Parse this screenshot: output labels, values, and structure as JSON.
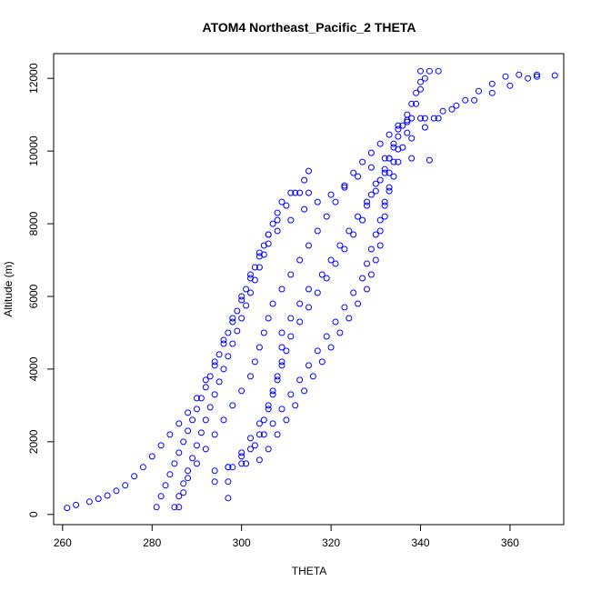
{
  "chart_data": {
    "type": "scatter",
    "title": "ATOM4 Northeast_Pacific_2 THETA",
    "xlabel": "THETA",
    "ylabel": "Altitude (m)",
    "xlim": [
      258,
      372
    ],
    "ylim": [
      -280,
      12680
    ],
    "xticks": [
      260,
      280,
      300,
      320,
      340,
      360
    ],
    "yticks": [
      0,
      2000,
      4000,
      6000,
      8000,
      10000,
      12000
    ],
    "grid": false,
    "marker": "open-circle",
    "point_color": "#0000ff",
    "series": [
      {
        "values": [
          [
            261,
            180
          ],
          [
            263,
            260
          ],
          [
            266,
            350
          ],
          [
            268,
            430
          ],
          [
            270,
            520
          ],
          [
            272,
            650
          ],
          [
            274,
            800
          ],
          [
            276,
            1050
          ],
          [
            278,
            1300
          ],
          [
            280,
            1600
          ],
          [
            282,
            1900
          ],
          [
            284,
            2200
          ],
          [
            286,
            2500
          ],
          [
            288,
            2800
          ],
          [
            290,
            3200
          ],
          [
            292,
            3700
          ],
          [
            294,
            4200
          ],
          [
            296,
            4800
          ],
          [
            298,
            5400
          ],
          [
            300,
            6000
          ],
          [
            302,
            6600
          ],
          [
            304,
            7200
          ],
          [
            306,
            7700
          ],
          [
            308,
            8100
          ],
          [
            310,
            8500
          ],
          [
            312,
            8850
          ],
          [
            314,
            9200
          ],
          [
            315,
            9450
          ]
        ]
      },
      {
        "values": [
          [
            281,
            200
          ],
          [
            282,
            500
          ],
          [
            283,
            800
          ],
          [
            284,
            1100
          ],
          [
            285,
            1400
          ],
          [
            286,
            1700
          ],
          [
            287,
            2000
          ],
          [
            288,
            2300
          ],
          [
            289,
            2600
          ],
          [
            290,
            2900
          ],
          [
            291,
            3200
          ],
          [
            292,
            3500
          ],
          [
            293,
            3800
          ],
          [
            294,
            4100
          ],
          [
            295,
            4400
          ],
          [
            296,
            4700
          ],
          [
            297,
            5000
          ],
          [
            298,
            5300
          ],
          [
            299,
            5600
          ],
          [
            300,
            5900
          ],
          [
            301,
            6200
          ],
          [
            302,
            6500
          ],
          [
            303,
            6800
          ],
          [
            304,
            7100
          ],
          [
            305,
            7400
          ],
          [
            306,
            7700
          ],
          [
            307,
            8000
          ],
          [
            308,
            8300
          ],
          [
            309,
            8600
          ],
          [
            311,
            8850
          ],
          [
            313,
            8850
          ],
          [
            315,
            8850
          ]
        ]
      },
      {
        "values": [
          [
            285,
            200
          ],
          [
            286,
            500
          ],
          [
            287,
            850
          ],
          [
            288,
            1200
          ],
          [
            289,
            1550
          ],
          [
            290,
            1900
          ],
          [
            291,
            2250
          ],
          [
            292,
            2600
          ],
          [
            293,
            2950
          ],
          [
            294,
            3300
          ],
          [
            295,
            3650
          ],
          [
            296,
            4000
          ],
          [
            297,
            4350
          ],
          [
            298,
            4700
          ],
          [
            299,
            5050
          ],
          [
            300,
            5400
          ],
          [
            301,
            5750
          ],
          [
            302,
            6100
          ],
          [
            303,
            6450
          ],
          [
            304,
            6800
          ],
          [
            305,
            7150
          ],
          [
            306,
            7450
          ],
          [
            308,
            7800
          ],
          [
            311,
            8100
          ],
          [
            314,
            8400
          ],
          [
            317,
            8600
          ],
          [
            320,
            8800
          ],
          [
            323,
            9050
          ],
          [
            326,
            9300
          ],
          [
            329,
            9550
          ],
          [
            332,
            9800
          ],
          [
            335,
            10050
          ],
          [
            338,
            10350
          ],
          [
            341,
            10650
          ],
          [
            344,
            10900
          ],
          [
            347,
            11150
          ],
          [
            350,
            11400
          ],
          [
            353,
            11650
          ],
          [
            356,
            11850
          ],
          [
            359,
            12050
          ],
          [
            362,
            12100
          ],
          [
            366,
            12100
          ],
          [
            370,
            12080
          ]
        ]
      },
      {
        "values": [
          [
            286,
            200
          ],
          [
            287,
            600
          ],
          [
            288,
            1000
          ],
          [
            290,
            1400
          ],
          [
            292,
            1800
          ],
          [
            294,
            2200
          ],
          [
            296,
            2600
          ],
          [
            298,
            3000
          ],
          [
            300,
            3400
          ],
          [
            302,
            3800
          ],
          [
            303,
            4200
          ],
          [
            304,
            4600
          ],
          [
            305,
            5000
          ],
          [
            306,
            5400
          ],
          [
            307,
            5800
          ],
          [
            309,
            6200
          ],
          [
            311,
            6600
          ],
          [
            313,
            7000
          ],
          [
            315,
            7400
          ],
          [
            317,
            7800
          ],
          [
            319,
            8200
          ],
          [
            321,
            8600
          ],
          [
            323,
            9000
          ],
          [
            325,
            9400
          ],
          [
            327,
            9700
          ],
          [
            329,
            9950
          ],
          [
            331,
            10200
          ],
          [
            333,
            10450
          ],
          [
            335,
            10700
          ],
          [
            337,
            10850
          ],
          [
            340,
            10900
          ],
          [
            343,
            10900
          ]
        ]
      },
      {
        "values": [
          [
            297,
            450
          ],
          [
            297,
            900
          ],
          [
            297,
            1300
          ],
          [
            300,
            1600
          ],
          [
            303,
            1900
          ],
          [
            305,
            2200
          ],
          [
            307,
            2500
          ],
          [
            309,
            2900
          ],
          [
            311,
            3300
          ],
          [
            313,
            3700
          ],
          [
            315,
            4100
          ],
          [
            317,
            4500
          ],
          [
            319,
            4900
          ],
          [
            321,
            5300
          ],
          [
            323,
            5700
          ],
          [
            325,
            6100
          ],
          [
            327,
            6500
          ],
          [
            328,
            6900
          ],
          [
            329,
            7300
          ],
          [
            330,
            7700
          ],
          [
            331,
            8100
          ],
          [
            332,
            8500
          ],
          [
            333,
            8900
          ],
          [
            334,
            9300
          ],
          [
            335,
            9700
          ],
          [
            336,
            10100
          ],
          [
            337,
            10500
          ],
          [
            338,
            10900
          ],
          [
            339,
            11300
          ],
          [
            340,
            11700
          ],
          [
            341,
            12000
          ],
          [
            342,
            12200
          ],
          [
            344,
            12200
          ]
        ]
      },
      {
        "values": [
          [
            294,
            900
          ],
          [
            297,
            1300
          ],
          [
            300,
            1700
          ],
          [
            302,
            2100
          ],
          [
            304,
            2500
          ],
          [
            306,
            2900
          ],
          [
            307,
            3300
          ],
          [
            308,
            3700
          ],
          [
            309,
            4100
          ],
          [
            310,
            4500
          ],
          [
            311,
            4900
          ],
          [
            313,
            5300
          ],
          [
            315,
            5700
          ],
          [
            317,
            6100
          ],
          [
            319,
            6500
          ],
          [
            321,
            6900
          ],
          [
            323,
            7300
          ],
          [
            325,
            7700
          ],
          [
            327,
            8100
          ],
          [
            328,
            8500
          ],
          [
            329,
            8800
          ],
          [
            330,
            9100
          ],
          [
            332,
            9400
          ],
          [
            334,
            9700
          ],
          [
            338,
            9800
          ],
          [
            342,
            9750
          ]
        ]
      },
      {
        "values": [
          [
            300,
            1400
          ],
          [
            302,
            1800
          ],
          [
            304,
            2200
          ],
          [
            305,
            2600
          ],
          [
            306,
            3000
          ],
          [
            307,
            3400
          ],
          [
            308,
            3800
          ],
          [
            309,
            4200
          ],
          [
            309,
            4600
          ],
          [
            309,
            5000
          ],
          [
            311,
            5400
          ],
          [
            313,
            5800
          ],
          [
            315,
            6200
          ],
          [
            318,
            6600
          ],
          [
            320,
            7000
          ],
          [
            322,
            7400
          ],
          [
            324,
            7800
          ],
          [
            326,
            8200
          ],
          [
            328,
            8600
          ],
          [
            330,
            8900
          ],
          [
            331,
            9200
          ],
          [
            332,
            9500
          ],
          [
            333,
            9800
          ],
          [
            334,
            10100
          ],
          [
            335,
            10400
          ],
          [
            336,
            10700
          ],
          [
            337,
            11000
          ],
          [
            338,
            11300
          ],
          [
            339,
            11600
          ],
          [
            340,
            11900
          ],
          [
            340,
            12200
          ]
        ]
      },
      {
        "values": [
          [
            294,
            1200
          ],
          [
            298,
            1300
          ],
          [
            301,
            1400
          ],
          [
            304,
            1500
          ],
          [
            306,
            1800
          ],
          [
            308,
            2200
          ],
          [
            310,
            2600
          ],
          [
            312,
            3000
          ],
          [
            314,
            3400
          ],
          [
            316,
            3800
          ],
          [
            318,
            4200
          ],
          [
            320,
            4600
          ],
          [
            322,
            5000
          ],
          [
            324,
            5400
          ],
          [
            326,
            5800
          ],
          [
            328,
            6200
          ],
          [
            329,
            6600
          ],
          [
            330,
            7000
          ],
          [
            331,
            7400
          ],
          [
            331,
            7800
          ],
          [
            332,
            8200
          ],
          [
            332,
            8600
          ],
          [
            333,
            9000
          ],
          [
            333,
            9400
          ],
          [
            333,
            9800
          ],
          [
            334,
            10200
          ],
          [
            335,
            10600
          ],
          [
            337,
            10800
          ],
          [
            341,
            10900
          ],
          [
            345,
            11100
          ],
          [
            348,
            11250
          ],
          [
            352,
            11400
          ],
          [
            356,
            11600
          ],
          [
            360,
            11800
          ],
          [
            364,
            12000
          ],
          [
            366,
            12050
          ]
        ]
      }
    ]
  }
}
